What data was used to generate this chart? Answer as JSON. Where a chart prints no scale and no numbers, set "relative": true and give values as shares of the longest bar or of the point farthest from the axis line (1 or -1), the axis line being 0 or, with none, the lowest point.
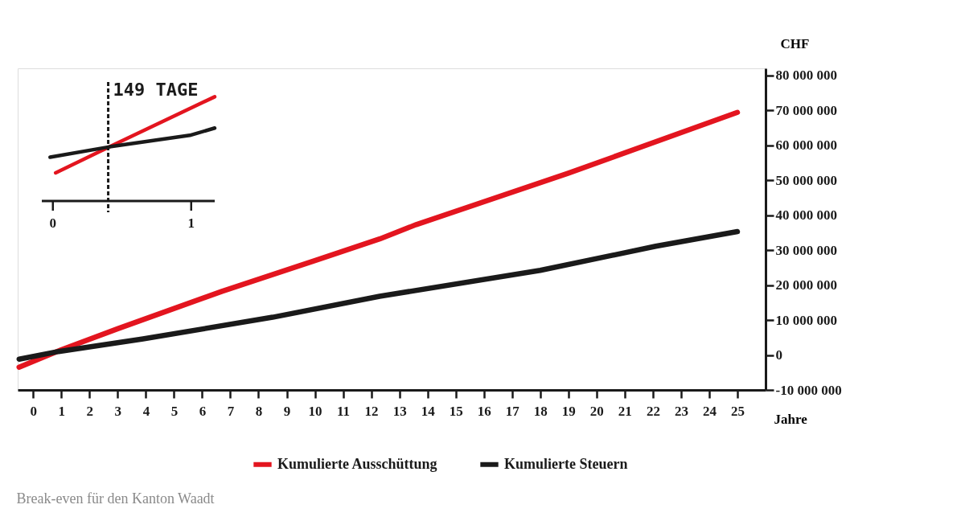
{
  "chart_data": [
    {
      "type": "line",
      "xlabel": "Jahre",
      "ylabel": "CHF",
      "xlim": [
        -0.55,
        26
      ],
      "xticks": [
        0,
        1,
        2,
        3,
        4,
        5,
        6,
        7,
        8,
        9,
        10,
        11,
        12,
        13,
        14,
        15,
        16,
        17,
        18,
        19,
        20,
        21,
        22,
        23,
        24,
        25
      ],
      "ylim": [
        -10000000,
        82000000
      ],
      "yticks": [
        {
          "value": -10000000,
          "label": "-10 000 000"
        },
        0,
        {
          "value": 10000000,
          "label": "10 000 000"
        },
        {
          "value": 20000000,
          "label": "20 000 000"
        },
        {
          "value": 30000000,
          "label": "30 000 000"
        },
        {
          "value": 40000000,
          "label": "40 000 000"
        },
        {
          "value": 50000000,
          "label": "50 000 000"
        },
        {
          "value": 60000000,
          "label": "60 000 000"
        },
        {
          "value": 70000000,
          "label": "70 000 000"
        },
        {
          "value": 80000000,
          "label": "80 000 000"
        }
      ],
      "series": [
        {
          "name": "Kumulierte Ausschüttung",
          "color": "#e3151f",
          "x": [
            -0.5,
            1,
            3,
            6.7,
            10,
            12.3,
            13.6,
            19,
            25
          ],
          "values": [
            -3500000,
            1500000,
            7500000,
            18200000,
            27000000,
            33200000,
            37300000,
            52000000,
            69400000
          ]
        },
        {
          "name": "Kumulierte Steuern",
          "color": "#1a1a1a",
          "x": [
            -0.5,
            0.9,
            3.9,
            8.5,
            12.3,
            18,
            22.1,
            25
          ],
          "values": [
            -1200000,
            1000000,
            4600000,
            10800000,
            16800000,
            24200000,
            31100000,
            35300000
          ]
        }
      ],
      "grid": false,
      "legend": "bottom",
      "line_style": "solid",
      "marker": "none",
      "annotations": [
        "Break-even für den Kanton Waadt"
      ]
    },
    {
      "type": "line",
      "relative": true,
      "xlim": [
        -0.08,
        1.17
      ],
      "xticks": [
        0,
        1
      ],
      "tick_labels": "x",
      "series": [
        {
          "color": "#e3151f",
          "x": [
            0.02,
            0.41,
            1.17
          ],
          "values": [
            0.27,
            0.52,
            1.0
          ]
        },
        {
          "color": "#1a1a1a",
          "x": [
            -0.02,
            0.41,
            0.99,
            1.17
          ],
          "values": [
            0.42,
            0.52,
            0.63,
            0.7
          ]
        }
      ],
      "ref_lines": [
        {
          "axis": "x",
          "value": 0.4,
          "label": "149 TAGE",
          "color": "#1a1a1a",
          "line_style": "dashed"
        }
      ],
      "grid": false,
      "legend": false,
      "line_style": "solid",
      "marker": "none"
    }
  ]
}
